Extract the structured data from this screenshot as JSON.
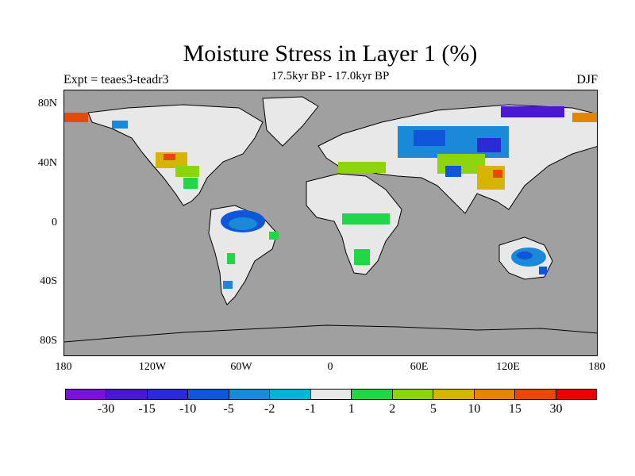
{
  "title": "Moisture Stress in Layer 1 (%)",
  "subtitle": "17.5kyr BP - 17.0kyr BP",
  "experiment_label": "Expt = teaes3-teadr3",
  "season_label": "DJF",
  "map": {
    "background_color": "#a0a0a0",
    "projection": "cylindrical equidistant",
    "lat_ticks": [
      "80N",
      "40N",
      "0",
      "40S",
      "80S"
    ],
    "lon_ticks": [
      "180",
      "120W",
      "60W",
      "0",
      "60E",
      "120E",
      "180"
    ]
  },
  "colorbar": {
    "colors": [
      "#7a12d6",
      "#4a18cf",
      "#2b2bd6",
      "#0f56d8",
      "#1a8ad8",
      "#00b4d6",
      "#e8e8e8",
      "#22d64a",
      "#8ed40c",
      "#d6b400",
      "#e28600",
      "#e8480a",
      "#e80000"
    ],
    "labels": [
      "-30",
      "-15",
      "-10",
      "-5",
      "-2",
      "-1",
      "1",
      "2",
      "5",
      "10",
      "15",
      "30"
    ]
  }
}
